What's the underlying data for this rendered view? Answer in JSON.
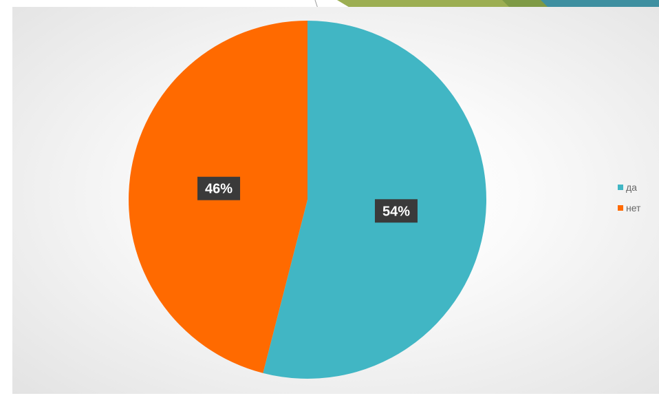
{
  "colors": {
    "series": [
      "#41B6C4",
      "#FF6A00"
    ],
    "label_bg": "#3A3A3A",
    "label_text": "#FFFFFF",
    "top_bar": [
      "#ffffff",
      "#9CAE52",
      "#7E9A45",
      "#3E8FA0"
    ]
  },
  "chart_data": {
    "type": "pie",
    "categories": [
      "да",
      "нет"
    ],
    "values": [
      54,
      46
    ],
    "data_labels": [
      "54%",
      "46%"
    ],
    "legend_position": "right",
    "start_angle_deg": 0
  }
}
